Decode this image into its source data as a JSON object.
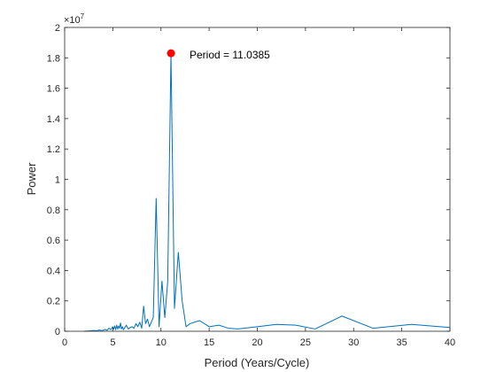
{
  "chart_data": {
    "type": "line",
    "xlabel": "Period (Years/Cycle)",
    "ylabel": "Power",
    "xlim": [
      0,
      40
    ],
    "ylim": [
      0,
      20000000
    ],
    "xticks": [
      0,
      5,
      10,
      15,
      20,
      25,
      30,
      35,
      40
    ],
    "xtick_labels": [
      "0",
      "5",
      "10",
      "15",
      "20",
      "25",
      "30",
      "35",
      "40"
    ],
    "yticks": [
      0,
      2000000,
      4000000,
      6000000,
      8000000,
      10000000,
      12000000,
      14000000,
      16000000,
      18000000,
      20000000
    ],
    "ytick_labels": [
      "0",
      "0.2",
      "0.4",
      "0.6",
      "0.8",
      "1",
      "1.2",
      "1.4",
      "1.6",
      "1.8",
      "2"
    ],
    "y_exponent_base": "×10",
    "y_exponent_power": "7",
    "line_color": "#0072bd",
    "marker_color": "#ff0000",
    "series": [
      {
        "x": [
          2.0,
          2.5,
          3.0,
          3.3,
          3.6,
          3.9,
          4.2,
          4.4,
          4.6,
          4.8,
          5.0,
          5.1,
          5.2,
          5.3,
          5.4,
          5.5,
          5.6,
          5.7,
          5.8,
          5.9,
          6.0,
          6.1,
          6.2,
          6.4,
          6.6,
          6.8,
          7.0,
          7.2,
          7.4,
          7.6,
          7.8,
          8.0,
          8.2,
          8.4,
          8.6,
          8.8,
          9.0,
          9.2,
          9.5,
          9.8,
          10.1,
          10.4,
          10.7,
          11.0385,
          11.4,
          11.8,
          12.2,
          12.6,
          13.0,
          14.0,
          15.0,
          16.0,
          17.0,
          18.0,
          20.0,
          22.0,
          24.0,
          26.0,
          28.8,
          32.0,
          36.0,
          40.0
        ],
        "y": [
          0,
          20000,
          50000,
          30000,
          80000,
          40000,
          120000,
          60000,
          200000,
          100000,
          300000,
          150000,
          350000,
          100000,
          400000,
          150000,
          350000,
          200000,
          550000,
          150000,
          300000,
          100000,
          200000,
          400000,
          150000,
          250000,
          300000,
          200000,
          500000,
          300000,
          600000,
          200000,
          1650000,
          500000,
          800000,
          300000,
          600000,
          900000,
          8750000,
          300000,
          3300000,
          900000,
          3300000,
          18300000,
          1500000,
          5200000,
          2000000,
          300000,
          500000,
          700000,
          300000,
          400000,
          200000,
          150000,
          300000,
          450000,
          400000,
          150000,
          1000000,
          200000,
          450000,
          250000
        ]
      }
    ],
    "peak": {
      "x": 11.0385,
      "y": 18300000
    },
    "annotation": "Period = 11.0385",
    "grid": false,
    "legend": "none"
  }
}
